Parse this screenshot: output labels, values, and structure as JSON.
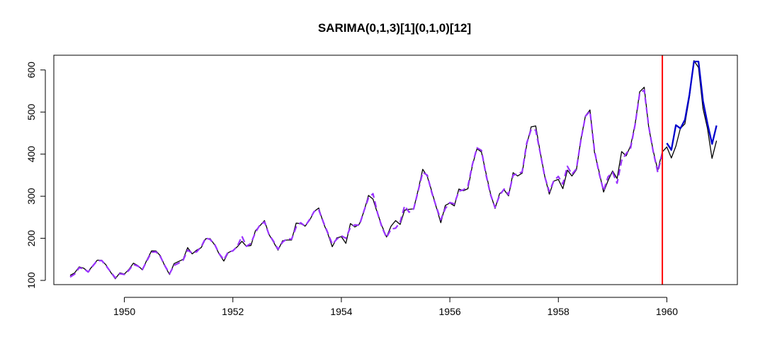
{
  "chart_data": {
    "type": "line",
    "title": "SARIMA(0,1,3)[1](0,1,0)[12]",
    "xlabel": "",
    "ylabel": "",
    "xlim": [
      1948.7,
      1961.3
    ],
    "ylim": [
      90,
      635
    ],
    "x_ticks": [
      1950,
      1952,
      1954,
      1956,
      1958,
      1960
    ],
    "y_ticks": [
      100,
      200,
      300,
      400,
      500,
      600
    ],
    "grid": false,
    "legend": "none",
    "colors": {
      "actual": "#000000",
      "fitted": "#9933ff",
      "forecast": "#0000cc",
      "split": "#ff0000"
    },
    "split_x": 1959.917,
    "series": [
      {
        "style": "solid",
        "color": "#000000",
        "start": 1949.0,
        "step": 0.08333,
        "values": [
          112,
          118,
          132,
          129,
          121,
          135,
          148,
          148,
          136,
          119,
          104,
          118,
          115,
          126,
          141,
          135,
          125,
          149,
          170,
          170,
          158,
          133,
          114,
          140,
          145,
          150,
          178,
          163,
          172,
          178,
          199,
          199,
          184,
          162,
          146,
          166,
          171,
          180,
          193,
          181,
          183,
          218,
          230,
          242,
          209,
          191,
          172,
          194,
          196,
          196,
          236,
          235,
          229,
          243,
          264,
          272,
          237,
          211,
          180,
          201,
          204,
          188,
          235,
          227,
          234,
          264,
          302,
          293,
          259,
          229,
          203,
          229,
          242,
          233,
          267,
          269,
          270,
          315,
          364,
          347,
          312,
          274,
          237,
          278,
          284,
          277,
          317,
          313,
          318,
          374,
          413,
          405,
          355,
          306,
          271,
          306,
          315,
          301,
          356,
          348,
          355,
          422,
          465,
          467,
          404,
          347,
          305,
          336,
          340,
          318,
          362,
          348,
          363,
          435,
          491,
          505,
          404,
          359,
          310,
          337,
          360,
          342,
          406,
          396,
          420,
          472,
          548,
          559,
          463,
          407,
          362,
          405,
          417,
          391,
          419,
          461,
          472,
          535,
          622,
          606,
          508,
          461,
          390,
          432
        ]
      },
      {
        "style": "dashed",
        "color": "#9933ff",
        "start": 1949.0,
        "step": 0.08333,
        "values": [
          108,
          115,
          130,
          128,
          120,
          134,
          147,
          147,
          134,
          120,
          106,
          116,
          114,
          124,
          138,
          134,
          126,
          147,
          167,
          168,
          156,
          134,
          116,
          136,
          141,
          148,
          172,
          165,
          168,
          180,
          201,
          197,
          185,
          163,
          149,
          168,
          170,
          181,
          205,
          181,
          188,
          214,
          232,
          239,
          209,
          193,
          174,
          191,
          199,
          198,
          227,
          237,
          229,
          245,
          264,
          268,
          239,
          213,
          186,
          198,
          206,
          200,
          226,
          232,
          231,
          265,
          296,
          306,
          260,
          226,
          202,
          222,
          224,
          238,
          277,
          262,
          270,
          313,
          357,
          350,
          309,
          275,
          244,
          271,
          285,
          282,
          312,
          315,
          324,
          376,
          415,
          409,
          351,
          304,
          273,
          302,
          317,
          304,
          350,
          353,
          358,
          426,
          459,
          457,
          403,
          346,
          311,
          337,
          347,
          329,
          371,
          352,
          365,
          434,
          490,
          502,
          408,
          355,
          313,
          346,
          357,
          331,
          385,
          401,
          415,
          471,
          545,
          552,
          465,
          405,
          357,
          401
        ]
      },
      {
        "style": "solid",
        "color": "#0000cc",
        "start": 1960.0,
        "step": 0.08333,
        "values": [
          426,
          410,
          469,
          461,
          482,
          541,
          620,
          620,
          526,
          472,
          424,
          468
        ]
      }
    ]
  }
}
